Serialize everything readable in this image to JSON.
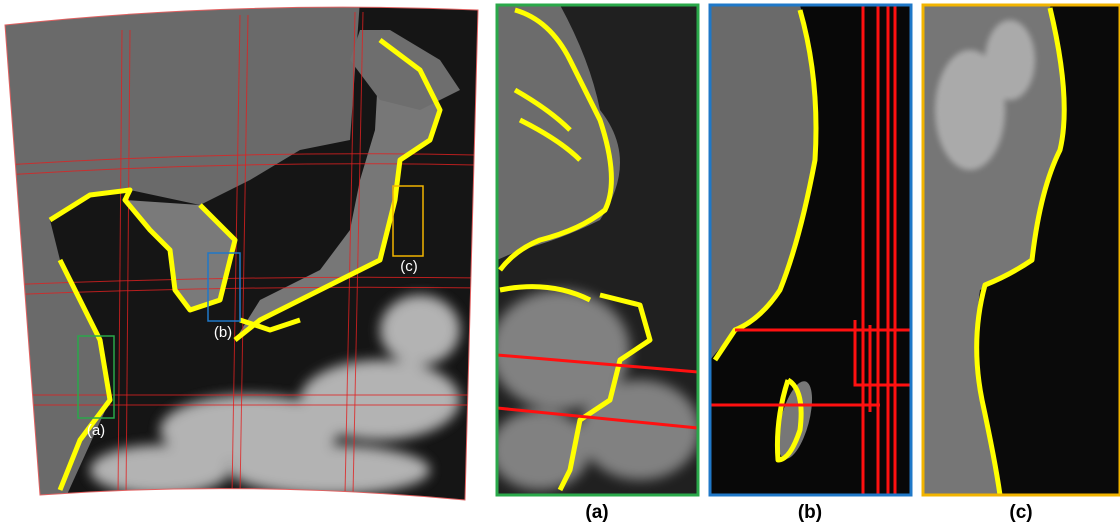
{
  "overview": {
    "labels": [
      "(a)",
      "(b)",
      "(c)"
    ]
  },
  "panels": [
    {
      "caption": "(a)"
    },
    {
      "caption": "(b)"
    },
    {
      "caption": "(c)"
    }
  ]
}
